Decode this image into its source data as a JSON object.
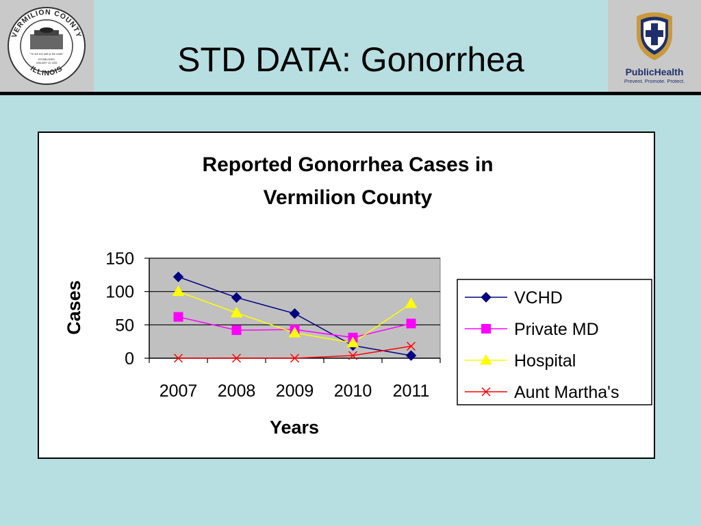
{
  "slide": {
    "title": "STD DATA: Gonorrhea"
  },
  "logos": {
    "left": {
      "name": "vermilion-county-seal",
      "top_text": "VERMILION COUNTY",
      "bottom_text": "ILLINOIS",
      "motto": "\"Ye are the salt of the earth\"",
      "established": "ESTABLISHED",
      "date": "JANUARY 18, 1826"
    },
    "right": {
      "name": "public-health-logo",
      "brand": "PublicHealth",
      "tagline": "Prevent. Promote. Protect."
    }
  },
  "colors": {
    "background": "#b7dfe2",
    "header_box": "#c9c9c9",
    "plot_area": "#c0c0c0",
    "vchd": "#000080",
    "private_md": "#ff00ff",
    "hospital": "#ffff00",
    "aunt_marthas": "#ff0000",
    "brand_navy": "#1f2f6b",
    "brand_gold": "#c99a3b"
  },
  "chart_data": {
    "type": "line",
    "title": "Reported Gonorrhea Cases in Vermilion County",
    "title_lines": [
      "Reported Gonorrhea Cases in",
      "Vermilion County"
    ],
    "xlabel": "Years",
    "ylabel": "Cases",
    "categories": [
      "2007",
      "2008",
      "2009",
      "2010",
      "2011"
    ],
    "ylim": [
      0,
      150
    ],
    "yticks": [
      0,
      50,
      100,
      150
    ],
    "grid": true,
    "legend_position": "right",
    "series": [
      {
        "name": "VCHD",
        "marker": "diamond",
        "color": "#000080",
        "values": [
          122,
          91,
          67,
          19,
          4
        ]
      },
      {
        "name": "Private MD",
        "marker": "square",
        "color": "#ff00ff",
        "values": [
          62,
          42,
          43,
          31,
          52
        ]
      },
      {
        "name": "Hospital",
        "marker": "triangle",
        "color": "#ffff00",
        "values": [
          100,
          68,
          38,
          23,
          82
        ]
      },
      {
        "name": "Aunt Martha's",
        "marker": "x",
        "color": "#ff0000",
        "values": [
          0,
          0,
          0,
          4,
          18
        ]
      }
    ]
  }
}
